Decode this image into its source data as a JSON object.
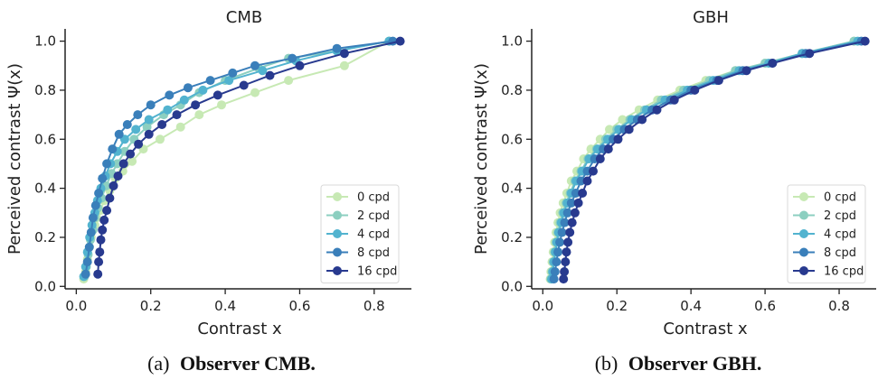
{
  "colors": {
    "0 cpd": "#c7e9b4",
    "2 cpd": "#8ccfc0",
    "4 cpd": "#52b3cf",
    "8 cpd": "#3a7fba",
    "16 cpd": "#283a8f",
    "axis": "#222222"
  },
  "captions": [
    {
      "prefix": "(a)",
      "bold": "Observer CMB."
    },
    {
      "prefix": "(b)",
      "bold": "Observer GBH."
    }
  ],
  "chart_data": [
    {
      "type": "line",
      "title": "CMB",
      "xlabel": "Contrast x",
      "ylabel": "Perceived contrast Ψ(x)",
      "xlim": [
        -0.03,
        0.9
      ],
      "ylim": [
        -0.01,
        1.05
      ],
      "xticks": [
        "0.0",
        "0.2",
        "0.4",
        "0.6",
        "0.8"
      ],
      "yticks": [
        "0.0",
        "0.2",
        "0.4",
        "0.6",
        "0.8",
        "1.0"
      ],
      "legend": "lower-right",
      "series": [
        {
          "name": "0 cpd",
          "x": [
            0.02,
            0.025,
            0.03,
            0.035,
            0.04,
            0.05,
            0.055,
            0.065,
            0.075,
            0.09,
            0.105,
            0.125,
            0.15,
            0.18,
            0.225,
            0.28,
            0.33,
            0.39,
            0.48,
            0.57,
            0.72,
            0.84
          ],
          "y": [
            0.03,
            0.06,
            0.11,
            0.16,
            0.2,
            0.25,
            0.28,
            0.31,
            0.35,
            0.39,
            0.44,
            0.47,
            0.51,
            0.56,
            0.6,
            0.65,
            0.7,
            0.74,
            0.79,
            0.84,
            0.9,
            1.0
          ]
        },
        {
          "name": "2 cpd",
          "x": [
            0.022,
            0.027,
            0.032,
            0.038,
            0.045,
            0.05,
            0.058,
            0.068,
            0.08,
            0.095,
            0.11,
            0.13,
            0.155,
            0.19,
            0.235,
            0.28,
            0.33,
            0.4,
            0.49,
            0.57,
            0.7,
            0.84
          ],
          "y": [
            0.04,
            0.08,
            0.13,
            0.19,
            0.23,
            0.28,
            0.32,
            0.36,
            0.41,
            0.46,
            0.5,
            0.55,
            0.6,
            0.65,
            0.7,
            0.74,
            0.79,
            0.84,
            0.89,
            0.93,
            0.96,
            1.0
          ]
        },
        {
          "name": "4 cpd",
          "x": [
            0.02,
            0.025,
            0.03,
            0.036,
            0.042,
            0.05,
            0.057,
            0.066,
            0.078,
            0.092,
            0.11,
            0.13,
            0.16,
            0.195,
            0.245,
            0.29,
            0.34,
            0.41,
            0.5,
            0.59,
            0.7,
            0.84
          ],
          "y": [
            0.04,
            0.08,
            0.14,
            0.2,
            0.25,
            0.3,
            0.35,
            0.4,
            0.45,
            0.5,
            0.55,
            0.6,
            0.64,
            0.68,
            0.72,
            0.76,
            0.8,
            0.84,
            0.88,
            0.92,
            0.96,
            1.0
          ]
        },
        {
          "name": "8 cpd",
          "x": [
            0.025,
            0.03,
            0.035,
            0.04,
            0.045,
            0.052,
            0.06,
            0.07,
            0.082,
            0.097,
            0.115,
            0.137,
            0.165,
            0.2,
            0.25,
            0.3,
            0.36,
            0.42,
            0.48,
            0.58,
            0.7,
            0.85
          ],
          "y": [
            0.05,
            0.1,
            0.16,
            0.22,
            0.28,
            0.33,
            0.38,
            0.44,
            0.5,
            0.56,
            0.62,
            0.66,
            0.7,
            0.74,
            0.78,
            0.81,
            0.84,
            0.87,
            0.9,
            0.93,
            0.97,
            1.0
          ]
        },
        {
          "name": "16 cpd",
          "x": [
            0.058,
            0.06,
            0.063,
            0.066,
            0.07,
            0.075,
            0.082,
            0.09,
            0.1,
            0.112,
            0.127,
            0.145,
            0.167,
            0.195,
            0.23,
            0.27,
            0.32,
            0.38,
            0.45,
            0.52,
            0.6,
            0.72,
            0.87
          ],
          "y": [
            0.05,
            0.1,
            0.14,
            0.19,
            0.23,
            0.27,
            0.31,
            0.36,
            0.41,
            0.45,
            0.5,
            0.54,
            0.58,
            0.62,
            0.66,
            0.7,
            0.74,
            0.78,
            0.82,
            0.86,
            0.9,
            0.95,
            1.0
          ]
        }
      ]
    },
    {
      "type": "line",
      "title": "GBH",
      "xlabel": "Contrast x",
      "ylabel": "Perceived contrast Ψ(x)",
      "xlim": [
        -0.03,
        0.9
      ],
      "ylim": [
        -0.01,
        1.05
      ],
      "xticks": [
        "0.0",
        "0.2",
        "0.4",
        "0.6",
        "0.8"
      ],
      "yticks": [
        "0.0",
        "0.2",
        "0.4",
        "0.6",
        "0.8",
        "1.0"
      ],
      "legend": "lower-right",
      "series": [
        {
          "name": "0 cpd",
          "x": [
            0.02,
            0.022,
            0.025,
            0.028,
            0.032,
            0.036,
            0.041,
            0.047,
            0.055,
            0.065,
            0.077,
            0.092,
            0.11,
            0.13,
            0.155,
            0.18,
            0.215,
            0.26,
            0.31,
            0.37,
            0.44,
            0.52,
            0.6,
            0.7,
            0.84
          ],
          "y": [
            0.03,
            0.06,
            0.1,
            0.14,
            0.18,
            0.22,
            0.26,
            0.3,
            0.34,
            0.38,
            0.43,
            0.47,
            0.52,
            0.56,
            0.6,
            0.64,
            0.68,
            0.72,
            0.76,
            0.8,
            0.84,
            0.88,
            0.91,
            0.95,
            1.0
          ]
        },
        {
          "name": "2 cpd",
          "x": [
            0.022,
            0.025,
            0.028,
            0.032,
            0.036,
            0.041,
            0.047,
            0.054,
            0.063,
            0.074,
            0.087,
            0.103,
            0.122,
            0.145,
            0.17,
            0.2,
            0.235,
            0.275,
            0.32,
            0.38,
            0.45,
            0.52,
            0.6,
            0.7,
            0.84
          ],
          "y": [
            0.03,
            0.06,
            0.1,
            0.14,
            0.18,
            0.22,
            0.26,
            0.3,
            0.34,
            0.38,
            0.43,
            0.47,
            0.52,
            0.56,
            0.6,
            0.64,
            0.68,
            0.72,
            0.76,
            0.8,
            0.84,
            0.88,
            0.91,
            0.95,
            1.0
          ]
        },
        {
          "name": "4 cpd",
          "x": [
            0.024,
            0.027,
            0.03,
            0.034,
            0.038,
            0.043,
            0.05,
            0.057,
            0.066,
            0.077,
            0.09,
            0.106,
            0.125,
            0.148,
            0.175,
            0.205,
            0.24,
            0.28,
            0.33,
            0.39,
            0.46,
            0.53,
            0.61,
            0.7,
            0.85
          ],
          "y": [
            0.03,
            0.06,
            0.1,
            0.14,
            0.18,
            0.22,
            0.26,
            0.3,
            0.34,
            0.38,
            0.43,
            0.47,
            0.52,
            0.56,
            0.6,
            0.64,
            0.68,
            0.72,
            0.76,
            0.8,
            0.84,
            0.88,
            0.91,
            0.95,
            1.0
          ]
        },
        {
          "name": "8 cpd",
          "x": [
            0.03,
            0.033,
            0.037,
            0.041,
            0.046,
            0.052,
            0.059,
            0.067,
            0.077,
            0.089,
            0.103,
            0.12,
            0.14,
            0.163,
            0.19,
            0.22,
            0.255,
            0.295,
            0.345,
            0.4,
            0.47,
            0.54,
            0.62,
            0.71,
            0.86
          ],
          "y": [
            0.03,
            0.06,
            0.1,
            0.14,
            0.18,
            0.22,
            0.26,
            0.3,
            0.34,
            0.38,
            0.43,
            0.47,
            0.52,
            0.56,
            0.6,
            0.64,
            0.68,
            0.72,
            0.76,
            0.8,
            0.84,
            0.88,
            0.91,
            0.95,
            1.0
          ]
        },
        {
          "name": "16 cpd",
          "x": [
            0.056,
            0.058,
            0.061,
            0.064,
            0.068,
            0.073,
            0.079,
            0.087,
            0.096,
            0.107,
            0.12,
            0.136,
            0.155,
            0.177,
            0.203,
            0.233,
            0.268,
            0.308,
            0.355,
            0.41,
            0.475,
            0.55,
            0.62,
            0.72,
            0.87
          ],
          "y": [
            0.03,
            0.06,
            0.1,
            0.14,
            0.18,
            0.22,
            0.26,
            0.3,
            0.34,
            0.38,
            0.43,
            0.47,
            0.52,
            0.56,
            0.6,
            0.64,
            0.68,
            0.72,
            0.76,
            0.8,
            0.84,
            0.88,
            0.91,
            0.95,
            1.0
          ]
        }
      ]
    }
  ]
}
